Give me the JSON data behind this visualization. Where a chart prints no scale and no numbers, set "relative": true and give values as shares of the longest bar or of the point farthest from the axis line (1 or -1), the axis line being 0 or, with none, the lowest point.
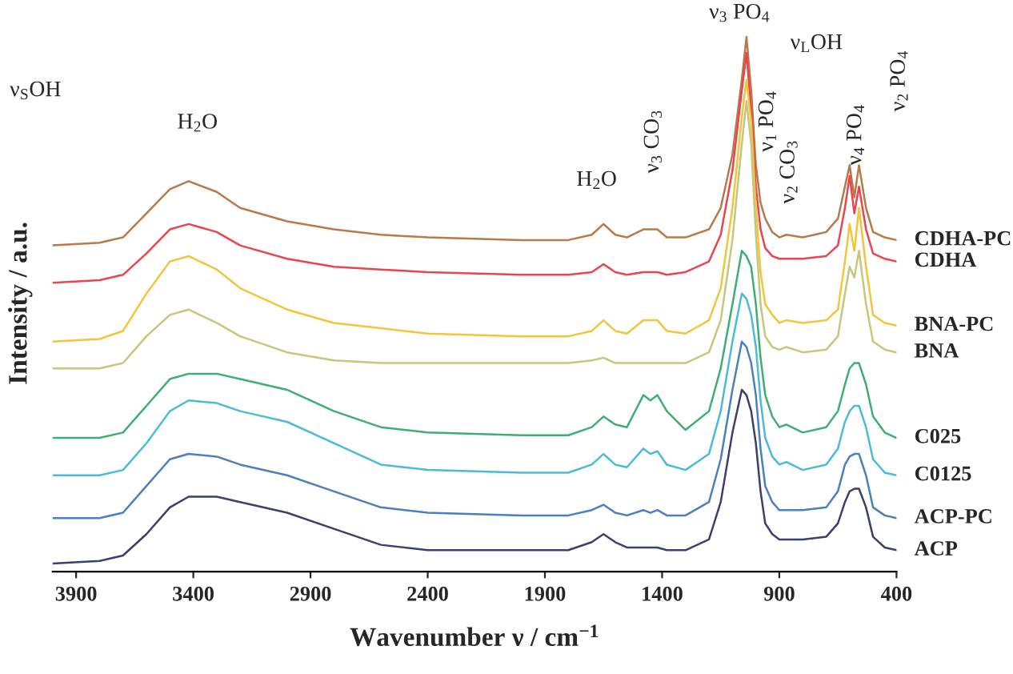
{
  "chart_data": {
    "type": "line",
    "relative": true,
    "xlabel": "Wavenumber ν / cm$^{−1}$",
    "ylabel": "Intensity / a.u.",
    "x": [
      4000,
      3800,
      3700,
      3600,
      3500,
      3420,
      3300,
      3200,
      3000,
      2800,
      2600,
      2400,
      2000,
      1800,
      1700,
      1650,
      1600,
      1550,
      1480,
      1450,
      1420,
      1380,
      1300,
      1200,
      1150,
      1100,
      1060,
      1040,
      1020,
      1000,
      980,
      960,
      930,
      900,
      870,
      800,
      700,
      650,
      620,
      600,
      580,
      560,
      530,
      500,
      450,
      400
    ],
    "xlim": [
      4000,
      400
    ],
    "xticks": [
      3900,
      3400,
      2900,
      2400,
      1900,
      1400,
      900,
      400
    ],
    "grid": false,
    "legend": false,
    "marker": "none",
    "line_style": "solid",
    "series": [
      {
        "name": "CDHA-PC",
        "color": "#b87a4b",
        "values": [
          0.61,
          0.615,
          0.625,
          0.67,
          0.715,
          0.73,
          0.71,
          0.68,
          0.655,
          0.64,
          0.63,
          0.625,
          0.62,
          0.62,
          0.63,
          0.65,
          0.63,
          0.625,
          0.64,
          0.64,
          0.64,
          0.625,
          0.625,
          0.64,
          0.68,
          0.78,
          0.92,
          1.0,
          0.9,
          0.76,
          0.69,
          0.66,
          0.635,
          0.625,
          0.63,
          0.625,
          0.635,
          0.66,
          0.72,
          0.76,
          0.7,
          0.76,
          0.68,
          0.635,
          0.625,
          0.62
        ]
      },
      {
        "name": "CDHA",
        "color": "#e8454f",
        "values": [
          0.54,
          0.545,
          0.555,
          0.595,
          0.64,
          0.65,
          0.635,
          0.61,
          0.585,
          0.57,
          0.565,
          0.56,
          0.555,
          0.555,
          0.56,
          0.575,
          0.56,
          0.555,
          0.56,
          0.56,
          0.56,
          0.555,
          0.56,
          0.58,
          0.63,
          0.75,
          0.9,
          0.97,
          0.86,
          0.72,
          0.64,
          0.605,
          0.59,
          0.585,
          0.585,
          0.585,
          0.59,
          0.61,
          0.68,
          0.74,
          0.67,
          0.72,
          0.64,
          0.595,
          0.585,
          0.58
        ]
      },
      {
        "name": "BNA-PC",
        "color": "#f2c53d",
        "values": [
          0.43,
          0.435,
          0.45,
          0.52,
          0.58,
          0.59,
          0.565,
          0.53,
          0.49,
          0.465,
          0.455,
          0.445,
          0.44,
          0.44,
          0.45,
          0.47,
          0.45,
          0.445,
          0.47,
          0.47,
          0.47,
          0.45,
          0.445,
          0.47,
          0.53,
          0.68,
          0.85,
          0.92,
          0.84,
          0.68,
          0.56,
          0.5,
          0.48,
          0.465,
          0.47,
          0.465,
          0.47,
          0.49,
          0.58,
          0.65,
          0.6,
          0.68,
          0.57,
          0.48,
          0.465,
          0.46
        ]
      },
      {
        "name": "BNA",
        "color": "#c5c77a",
        "values": [
          0.38,
          0.38,
          0.39,
          0.44,
          0.48,
          0.49,
          0.465,
          0.44,
          0.41,
          0.395,
          0.39,
          0.39,
          0.39,
          0.39,
          0.395,
          0.4,
          0.39,
          0.39,
          0.39,
          0.39,
          0.39,
          0.39,
          0.39,
          0.41,
          0.47,
          0.62,
          0.8,
          0.88,
          0.8,
          0.63,
          0.5,
          0.44,
          0.42,
          0.415,
          0.42,
          0.41,
          0.415,
          0.44,
          0.52,
          0.57,
          0.55,
          0.6,
          0.5,
          0.43,
          0.415,
          0.41
        ]
      },
      {
        "name": "C025",
        "color": "#3fae74",
        "values": [
          0.25,
          0.25,
          0.26,
          0.31,
          0.36,
          0.37,
          0.37,
          0.36,
          0.34,
          0.3,
          0.27,
          0.26,
          0.255,
          0.255,
          0.27,
          0.29,
          0.275,
          0.27,
          0.33,
          0.32,
          0.33,
          0.3,
          0.265,
          0.3,
          0.38,
          0.5,
          0.6,
          0.59,
          0.57,
          0.5,
          0.4,
          0.33,
          0.29,
          0.27,
          0.275,
          0.26,
          0.27,
          0.3,
          0.35,
          0.38,
          0.39,
          0.39,
          0.35,
          0.29,
          0.26,
          0.25
        ]
      },
      {
        "name": "C0125",
        "color": "#4cbbd8",
        "values": [
          0.18,
          0.18,
          0.19,
          0.24,
          0.3,
          0.32,
          0.315,
          0.3,
          0.28,
          0.24,
          0.2,
          0.19,
          0.185,
          0.185,
          0.2,
          0.22,
          0.2,
          0.195,
          0.23,
          0.22,
          0.225,
          0.2,
          0.19,
          0.22,
          0.3,
          0.43,
          0.52,
          0.51,
          0.48,
          0.42,
          0.32,
          0.25,
          0.215,
          0.2,
          0.205,
          0.19,
          0.2,
          0.23,
          0.28,
          0.3,
          0.31,
          0.31,
          0.27,
          0.21,
          0.185,
          0.18
        ]
      },
      {
        "name": "ACP-PC",
        "color": "#4a7fc0",
        "values": [
          0.1,
          0.1,
          0.11,
          0.16,
          0.21,
          0.22,
          0.215,
          0.2,
          0.18,
          0.15,
          0.12,
          0.11,
          0.105,
          0.105,
          0.115,
          0.125,
          0.11,
          0.105,
          0.115,
          0.11,
          0.115,
          0.105,
          0.105,
          0.13,
          0.21,
          0.34,
          0.43,
          0.42,
          0.39,
          0.33,
          0.23,
          0.16,
          0.13,
          0.115,
          0.115,
          0.115,
          0.12,
          0.15,
          0.2,
          0.215,
          0.22,
          0.22,
          0.18,
          0.12,
          0.105,
          0.1
        ]
      },
      {
        "name": "ACP",
        "color": "#3d3f6e",
        "values": [
          0.015,
          0.02,
          0.03,
          0.07,
          0.12,
          0.14,
          0.14,
          0.13,
          0.11,
          0.08,
          0.05,
          0.04,
          0.04,
          0.04,
          0.055,
          0.07,
          0.055,
          0.045,
          0.045,
          0.045,
          0.045,
          0.04,
          0.04,
          0.06,
          0.13,
          0.26,
          0.34,
          0.33,
          0.3,
          0.24,
          0.15,
          0.09,
          0.07,
          0.06,
          0.06,
          0.06,
          0.065,
          0.09,
          0.13,
          0.15,
          0.155,
          0.155,
          0.12,
          0.065,
          0.045,
          0.04
        ]
      }
    ],
    "annotations": [
      "ν$_{S}$OH",
      "H$_{2}$O",
      "H$_{2}$O",
      "ν$_{3}$ CO$_{3}$",
      "ν$_{3}$ PO$_{4}$",
      "ν$_{1}$ PO$_{4}$",
      "ν$_{2}$ CO$_{3}$",
      "ν$_{L}$OH",
      "ν$_{4}$ PO$_{4}$",
      "ν$_{2}$ PO$_{4}$"
    ]
  }
}
